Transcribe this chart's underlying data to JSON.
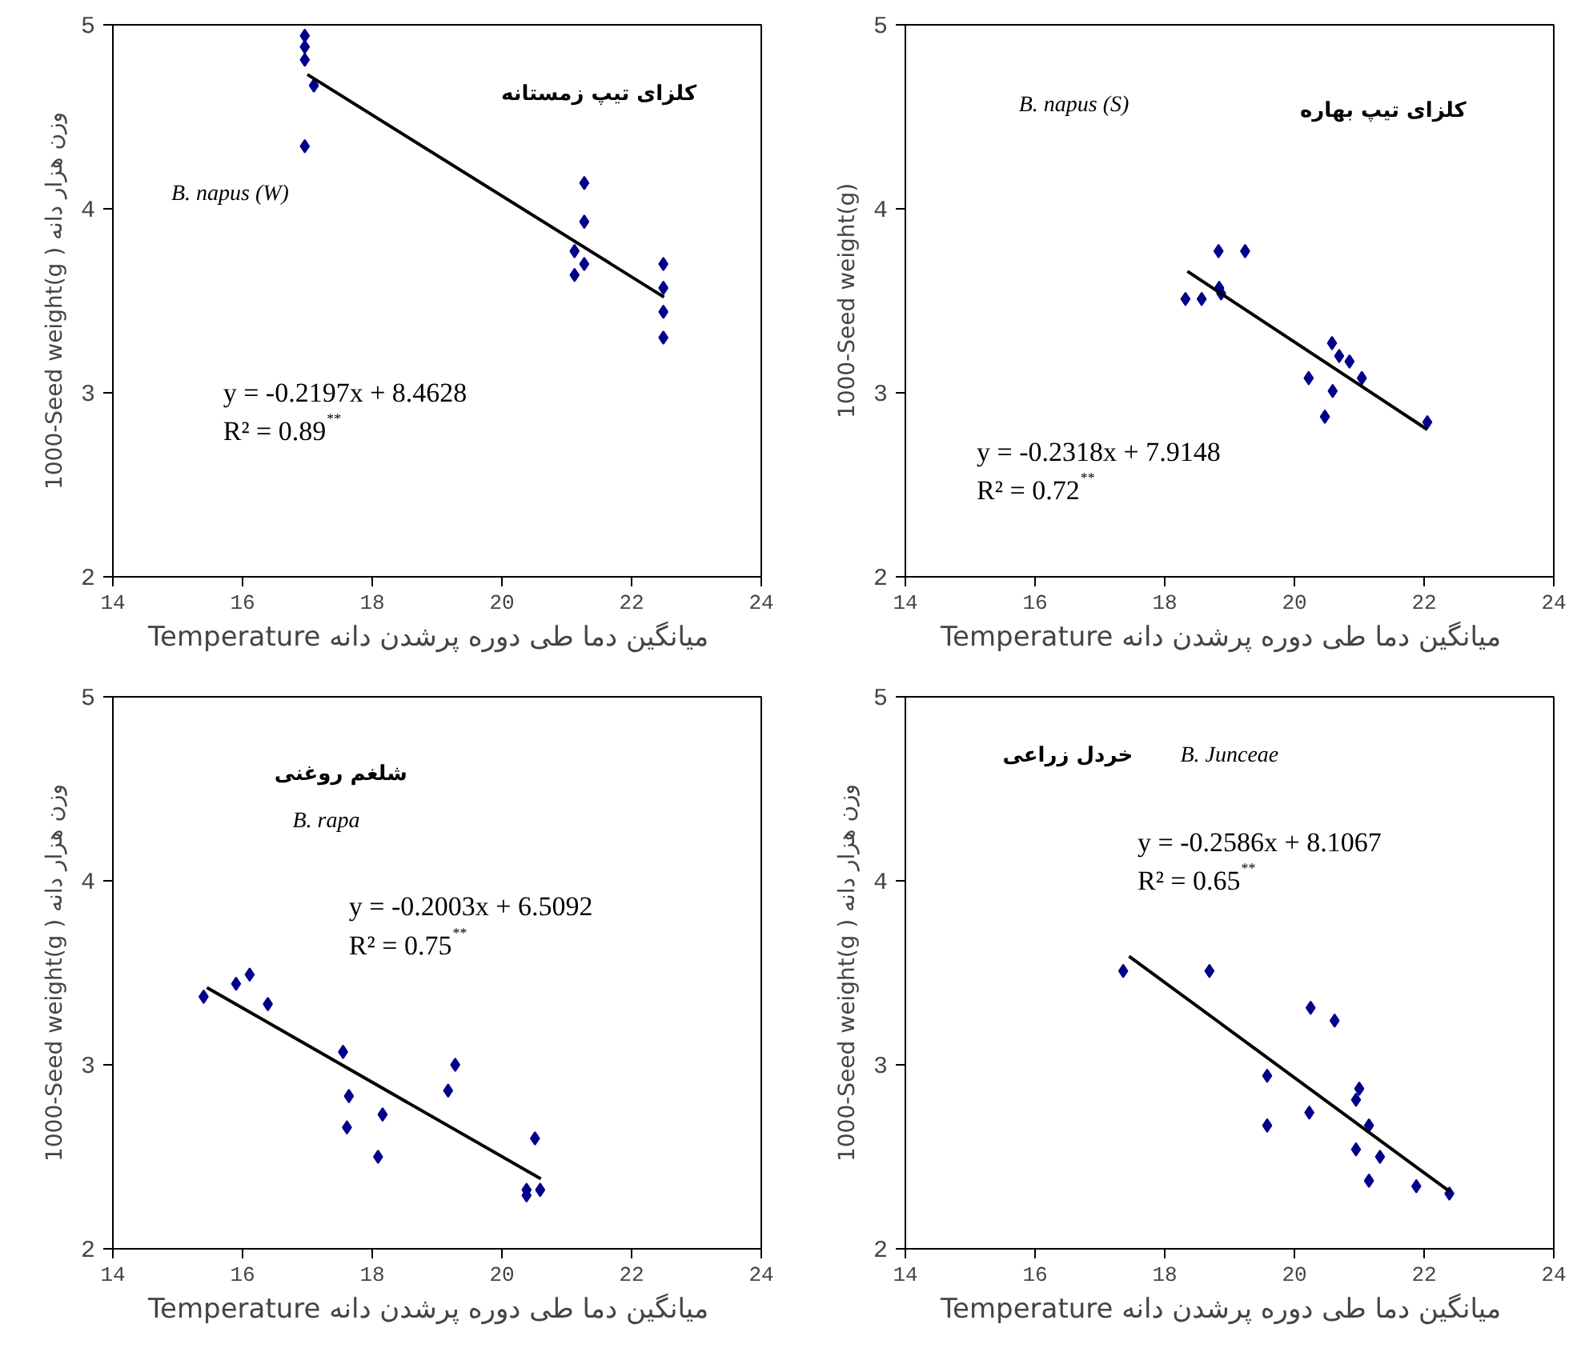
{
  "chart_data": [
    {
      "type": "scatter",
      "xlabel": "Temperature   میانگین دما طی دوره پرشدن دانه",
      "ylabel": "1000-Seed weight(g ) وزن هزار دانه",
      "xlim": [
        14,
        24
      ],
      "ylim": [
        2,
        5
      ],
      "xticks": [
        14,
        16,
        18,
        20,
        22,
        24
      ],
      "yticks": [
        2,
        3,
        4,
        5
      ],
      "annotations": [
        "کلزای تیپ زمستانه",
        "B. napus (W)",
        "y = -0.2197x + 8.4628",
        "R² = 0.89$^{**}$"
      ],
      "series": [
        {
          "marker": "diamond",
          "color": "#00008b",
          "x": [
            16.96,
            16.96,
            16.96,
            17.1,
            16.96,
            21.27,
            21.27,
            21.12,
            21.27,
            21.12,
            22.49,
            22.49,
            22.49,
            22.49
          ],
          "values": [
            4.94,
            4.88,
            4.81,
            4.67,
            4.34,
            4.14,
            3.93,
            3.77,
            3.7,
            3.64,
            3.7,
            3.57,
            3.44,
            3.3
          ]
        },
        {
          "type": "line",
          "color": "#000000",
          "x": [
            17.0,
            22.5
          ],
          "values": [
            4.73,
            3.52
          ]
        }
      ]
    },
    {
      "type": "scatter",
      "xlabel": "Temperature   میانگین دما طی دوره پرشدن دانه",
      "ylabel": "1000-Seed weight(g)",
      "xlim": [
        14,
        24
      ],
      "ylim": [
        2,
        5
      ],
      "xticks": [
        14,
        16,
        18,
        20,
        22,
        24
      ],
      "yticks": [
        2,
        3,
        4,
        5
      ],
      "annotations": [
        "کلزای تیپ بهاره",
        "B. napus (S)",
        "y = -0.2318x + 7.9148",
        "R² = 0.72$^{**}$"
      ],
      "series": [
        {
          "marker": "diamond",
          "color": "#00008b",
          "x": [
            18.83,
            19.24,
            18.32,
            18.57,
            18.84,
            18.87,
            20.58,
            20.69,
            20.85,
            21.04,
            20.22,
            20.59,
            20.47,
            22.05
          ],
          "values": [
            3.77,
            3.77,
            3.51,
            3.51,
            3.57,
            3.54,
            3.27,
            3.2,
            3.17,
            3.08,
            3.08,
            3.01,
            2.87,
            2.84
          ]
        },
        {
          "type": "line",
          "color": "#000000",
          "x": [
            18.35,
            22.05
          ],
          "values": [
            3.66,
            2.8
          ]
        }
      ]
    },
    {
      "type": "scatter",
      "xlabel": "Temperature   میانگین دما طی دوره پرشدن دانه",
      "ylabel": "1000-Seed weight(g ) وزن هزار دانه",
      "xlim": [
        14,
        24
      ],
      "ylim": [
        2,
        5
      ],
      "xticks": [
        14,
        16,
        18,
        20,
        22,
        24
      ],
      "yticks": [
        2,
        3,
        4,
        5
      ],
      "annotations": [
        "شلغم روغنی",
        "B. rapa",
        "y = -0.2003x + 6.5092",
        "R² = 0.75$^{**}$"
      ],
      "series": [
        {
          "marker": "diamond",
          "color": "#00008b",
          "x": [
            15.4,
            15.9,
            16.11,
            16.39,
            17.55,
            17.64,
            17.61,
            18.16,
            18.09,
            19.17,
            19.28,
            20.51,
            20.38,
            20.38,
            20.59
          ],
          "values": [
            3.37,
            3.44,
            3.49,
            3.33,
            3.07,
            2.83,
            2.66,
            2.73,
            2.5,
            2.86,
            3.0,
            2.6,
            2.32,
            2.29,
            2.32
          ]
        },
        {
          "type": "line",
          "color": "#000000",
          "x": [
            15.45,
            20.6
          ],
          "values": [
            3.42,
            2.38
          ]
        }
      ]
    },
    {
      "type": "scatter",
      "xlabel": "Temperature   میانگین دما طی دوره پرشدن دانه",
      "ylabel": "1000-Seed weight(g ) وزن هزار دانه",
      "xlim": [
        14,
        24
      ],
      "ylim": [
        2,
        5
      ],
      "xticks": [
        14,
        16,
        18,
        20,
        22,
        24
      ],
      "yticks": [
        2,
        3,
        4,
        5
      ],
      "annotations": [
        "خردل زراعی",
        "B. Junceae",
        "y = -0.2586x + 8.1067",
        "R² = 0.65$^{**}$"
      ],
      "series": [
        {
          "marker": "diamond",
          "color": "#00008b",
          "x": [
            17.36,
            18.69,
            20.25,
            20.62,
            19.58,
            19.58,
            20.23,
            21.0,
            20.95,
            21.15,
            20.95,
            21.32,
            21.15,
            21.88,
            22.39
          ],
          "values": [
            3.51,
            3.51,
            3.31,
            3.24,
            2.94,
            2.67,
            2.74,
            2.87,
            2.81,
            2.67,
            2.54,
            2.5,
            2.37,
            2.34,
            2.3
          ]
        },
        {
          "type": "line",
          "color": "#000000",
          "x": [
            17.45,
            22.4
          ],
          "values": [
            3.59,
            2.31
          ]
        }
      ]
    }
  ]
}
